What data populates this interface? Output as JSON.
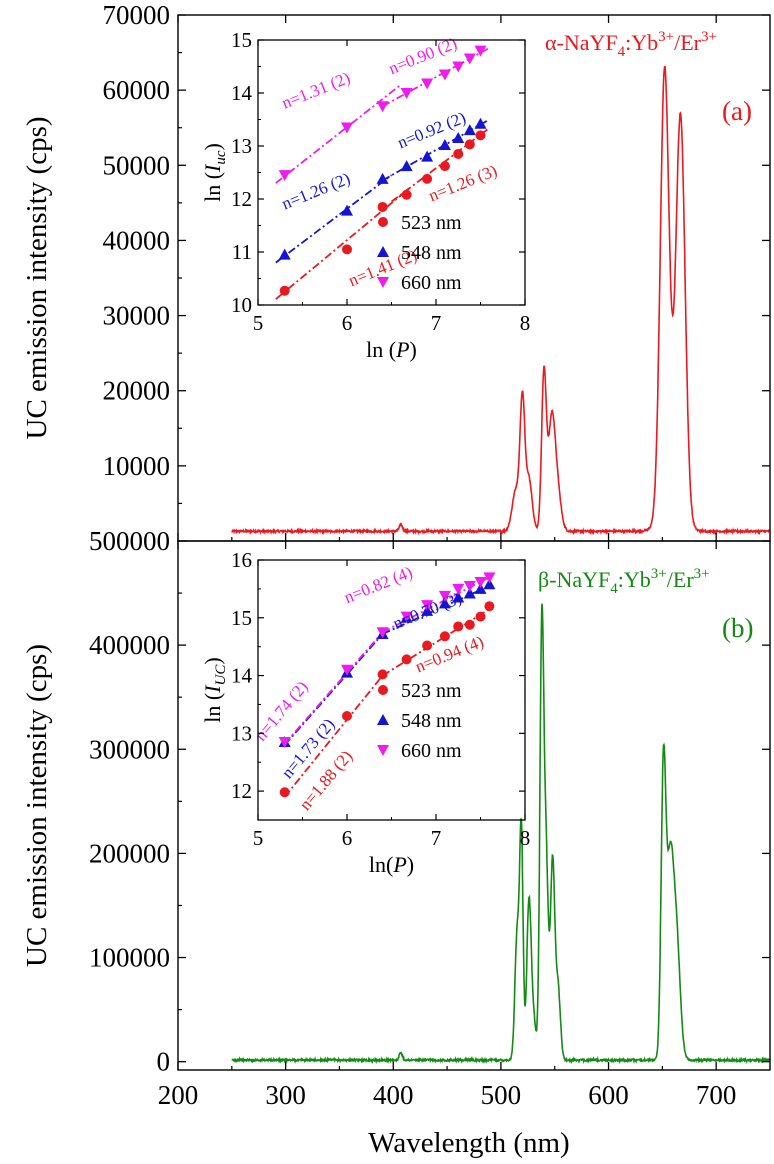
{
  "colors": {
    "alpha": "#e8191f",
    "beta": "#138a13",
    "red_pts": "#e8191f",
    "blue_pts": "#1414d2",
    "magenta_pts": "#ee1cee",
    "axis": "#000000"
  },
  "chart_data": [
    {
      "id": "top",
      "type": "line",
      "title_prefix": "α-NaYF",
      "title_sub": "4",
      "title_mid": ":Yb",
      "title_sup1": "3+",
      "title_end": "/Er",
      "title_sup2": "3+",
      "panel_label": "(a)",
      "xlabel": "Wavelength (nm)",
      "ylabel": "UC emission intensity (cps)",
      "xlim": [
        200,
        750
      ],
      "ylim": [
        0,
        70000
      ],
      "xticks": [
        200,
        300,
        400,
        500,
        600,
        700
      ],
      "yticks": [
        10000,
        20000,
        30000,
        40000,
        50000,
        60000,
        70000
      ],
      "ytick_labels": [
        "10000",
        "20000",
        "30000",
        "40000",
        "50000",
        "60000",
        "70000"
      ],
      "baseline": 1300,
      "peaks": [
        {
          "center": 407,
          "width": 1.5,
          "height": 900
        },
        {
          "center": 514,
          "width": 3.5,
          "height": 5500
        },
        {
          "center": 520,
          "width": 2.2,
          "height": 16500
        },
        {
          "center": 526,
          "width": 3.0,
          "height": 7000
        },
        {
          "center": 540,
          "width": 2.2,
          "height": 21000
        },
        {
          "center": 547,
          "width": 3.0,
          "height": 13500
        },
        {
          "center": 552,
          "width": 3.5,
          "height": 6000
        },
        {
          "center": 652,
          "width": 4.0,
          "height": 55500
        },
        {
          "center": 667,
          "width": 4.2,
          "height": 50000
        },
        {
          "center": 659,
          "width": 8.0,
          "height": 9000
        }
      ],
      "inset": {
        "xlabel_pre": "ln (",
        "xlabel_var": "P",
        "xlabel_post": ")",
        "ylabel_pre": "ln (",
        "ylabel_var": "I",
        "ylabel_sub": "uc",
        "ylabel_post": ")",
        "xlim": [
          5,
          8
        ],
        "ylim": [
          10,
          15
        ],
        "xticks": [
          5,
          6,
          7,
          8
        ],
        "yticks": [
          10,
          11,
          12,
          13,
          14,
          15
        ],
        "legend": [
          "523 nm",
          "548 nm",
          "660 nm"
        ],
        "series": [
          {
            "name": "523 nm",
            "marker": "circle",
            "color": "#e8191f",
            "x": [
              5.3,
              6.0,
              6.4,
              6.67,
              6.9,
              7.1,
              7.25,
              7.38,
              7.5
            ],
            "y": [
              10.27,
              11.05,
              11.85,
              12.08,
              12.38,
              12.62,
              12.85,
              13.03,
              13.2
            ]
          },
          {
            "name": "548 nm",
            "marker": "triangle-up",
            "color": "#1414d2",
            "x": [
              5.3,
              6.0,
              6.4,
              6.67,
              6.9,
              7.1,
              7.25,
              7.38,
              7.5
            ],
            "y": [
              10.95,
              11.78,
              12.38,
              12.62,
              12.8,
              13.02,
              13.15,
              13.3,
              13.42
            ]
          },
          {
            "name": "660 nm",
            "marker": "triangle-down",
            "color": "#ee1cee",
            "x": [
              5.3,
              6.0,
              6.4,
              6.67,
              6.9,
              7.1,
              7.25,
              7.38,
              7.5
            ],
            "y": [
              12.45,
              13.35,
              13.75,
              14.0,
              14.18,
              14.35,
              14.5,
              14.65,
              14.8
            ]
          }
        ],
        "fits": [
          {
            "color": "#e8191f",
            "x": [
              5.2,
              6.7
            ],
            "y": [
              10.11,
              12.2
            ]
          },
          {
            "color": "#e8191f",
            "x": [
              6.5,
              7.6
            ],
            "y": [
              11.95,
              13.34
            ]
          },
          {
            "color": "#1414d2",
            "x": [
              5.2,
              6.5
            ],
            "y": [
              10.8,
              12.45
            ]
          },
          {
            "color": "#1414d2",
            "x": [
              6.4,
              7.6
            ],
            "y": [
              12.35,
              13.5
            ]
          },
          {
            "color": "#ee1cee",
            "x": [
              5.2,
              6.6
            ],
            "y": [
              12.3,
              14.15
            ]
          },
          {
            "color": "#ee1cee",
            "x": [
              6.4,
              7.6
            ],
            "y": [
              13.75,
              14.85
            ]
          }
        ],
        "annotations": [
          {
            "text": "n=1.31 (2)",
            "color": "#ee1cee",
            "x": 5.3,
            "y": 13.7,
            "rot": -22
          },
          {
            "text": "n=0.90 (2)",
            "color": "#ee1cee",
            "x": 6.5,
            "y": 14.35,
            "rot": -22
          },
          {
            "text": "n=1.26 (2)",
            "color": "#1414d2",
            "x": 5.3,
            "y": 11.8,
            "rot": -22
          },
          {
            "text": "n=0.92 (2)",
            "color": "#1414d2",
            "x": 6.6,
            "y": 12.95,
            "rot": -22
          },
          {
            "text": "n=1.41 (2)",
            "color": "#e8191f",
            "x": 6.05,
            "y": 10.35,
            "rot": -22
          },
          {
            "text": "n=1.26 (3)",
            "color": "#e8191f",
            "x": 6.95,
            "y": 11.95,
            "rot": -22
          }
        ]
      }
    },
    {
      "id": "bottom",
      "type": "line",
      "title_prefix": "β-NaYF",
      "title_sub": "4",
      "title_mid": ":Yb",
      "title_sup1": "3+",
      "title_end": "/Er",
      "title_sup2": "3+",
      "panel_label": "(b)",
      "xlabel": "Wavelength (nm)",
      "ylabel": "UC emission intensity (cps)",
      "xlim": [
        200,
        750
      ],
      "ylim": [
        -8000,
        500000
      ],
      "xticks": [
        200,
        300,
        400,
        500,
        600,
        700
      ],
      "yticks": [
        0,
        100000,
        200000,
        300000,
        400000,
        500000
      ],
      "ytick_labels": [
        "0",
        "100000",
        "200000",
        "300000",
        "400000",
        "500000"
      ],
      "baseline": 1500,
      "peaks": [
        {
          "center": 407,
          "width": 1.5,
          "height": 7000
        },
        {
          "center": 515,
          "width": 2.0,
          "height": 120000
        },
        {
          "center": 519,
          "width": 1.6,
          "height": 215000
        },
        {
          "center": 526,
          "width": 2.0,
          "height": 145000
        },
        {
          "center": 530,
          "width": 2.5,
          "height": 40000
        },
        {
          "center": 538,
          "width": 1.8,
          "height": 410000
        },
        {
          "center": 542,
          "width": 2.0,
          "height": 190000
        },
        {
          "center": 548,
          "width": 2.0,
          "height": 190000
        },
        {
          "center": 553,
          "width": 2.2,
          "height": 70000
        },
        {
          "center": 651,
          "width": 2.2,
          "height": 270000
        },
        {
          "center": 657,
          "width": 3.2,
          "height": 175000
        },
        {
          "center": 663,
          "width": 3.5,
          "height": 115000
        }
      ],
      "inset": {
        "xlabel_pre": "ln(",
        "xlabel_var": "P",
        "xlabel_post": ")",
        "ylabel_pre": "ln (",
        "ylabel_var": "I",
        "ylabel_sub": "UC",
        "ylabel_post": ")",
        "xlim": [
          5,
          8
        ],
        "ylim": [
          11.5,
          16
        ],
        "xticks": [
          5,
          6,
          7,
          8
        ],
        "yticks": [
          12,
          13,
          14,
          15,
          16
        ],
        "legend": [
          "523 nm",
          "548 nm",
          "660 nm"
        ],
        "series": [
          {
            "name": "523 nm",
            "marker": "circle",
            "color": "#e8191f",
            "x": [
              5.3,
              6.0,
              6.4,
              6.67,
              6.9,
              7.1,
              7.25,
              7.38,
              7.5,
              7.6
            ],
            "y": [
              11.98,
              13.3,
              14.02,
              14.28,
              14.52,
              14.68,
              14.85,
              14.88,
              15.02,
              15.2
            ]
          },
          {
            "name": "548 nm",
            "marker": "triangle-up",
            "color": "#1414d2",
            "x": [
              5.3,
              6.0,
              6.4,
              6.67,
              6.9,
              7.1,
              7.25,
              7.38,
              7.5,
              7.6
            ],
            "y": [
              12.85,
              14.05,
              14.72,
              15.0,
              15.12,
              15.25,
              15.35,
              15.42,
              15.5,
              15.58
            ]
          },
          {
            "name": "660 nm",
            "marker": "triangle-down",
            "color": "#ee1cee",
            "x": [
              5.3,
              6.0,
              6.4,
              6.67,
              6.9,
              7.1,
              7.25,
              7.38,
              7.5,
              7.6
            ],
            "y": [
              12.85,
              14.1,
              14.75,
              15.02,
              15.22,
              15.38,
              15.5,
              15.55,
              15.62,
              15.7
            ]
          }
        ],
        "fits": [
          {
            "color": "#e8191f",
            "x": [
              5.3,
              6.4
            ],
            "y": [
              11.9,
              14.0
            ]
          },
          {
            "color": "#e8191f",
            "x": [
              6.4,
              7.6
            ],
            "y": [
              14.0,
              15.15
            ]
          },
          {
            "color": "#1414d2",
            "x": [
              5.3,
              6.4
            ],
            "y": [
              12.8,
              14.72
            ]
          },
          {
            "color": "#1414d2",
            "x": [
              6.4,
              7.6
            ],
            "y": [
              14.72,
              15.55
            ]
          },
          {
            "color": "#ee1cee",
            "x": [
              5.3,
              6.4
            ],
            "y": [
              12.82,
              14.75
            ]
          },
          {
            "color": "#ee1cee",
            "x": [
              6.4,
              7.6
            ],
            "y": [
              14.75,
              15.7
            ]
          }
        ],
        "annotations": [
          {
            "text": "n=1.74 (2)",
            "color": "#ee1cee",
            "x": 5.05,
            "y": 12.85,
            "rot": -50
          },
          {
            "text": "n=1.73 (2)",
            "color": "#1414d2",
            "x": 5.35,
            "y": 12.2,
            "rot": -50
          },
          {
            "text": "n=1.88 (2)",
            "color": "#e8191f",
            "x": 5.55,
            "y": 11.65,
            "rot": -50
          },
          {
            "text": "n=0.82 (4)",
            "color": "#ee1cee",
            "x": 6.0,
            "y": 15.25,
            "rot": -22
          },
          {
            "text": "n=0.70 (3)",
            "color": "#1414d2",
            "x": 6.55,
            "y": 14.8,
            "rot": -22
          },
          {
            "text": "n=0.94 (4)",
            "color": "#e8191f",
            "x": 6.8,
            "y": 14.05,
            "rot": -22
          }
        ]
      }
    }
  ]
}
